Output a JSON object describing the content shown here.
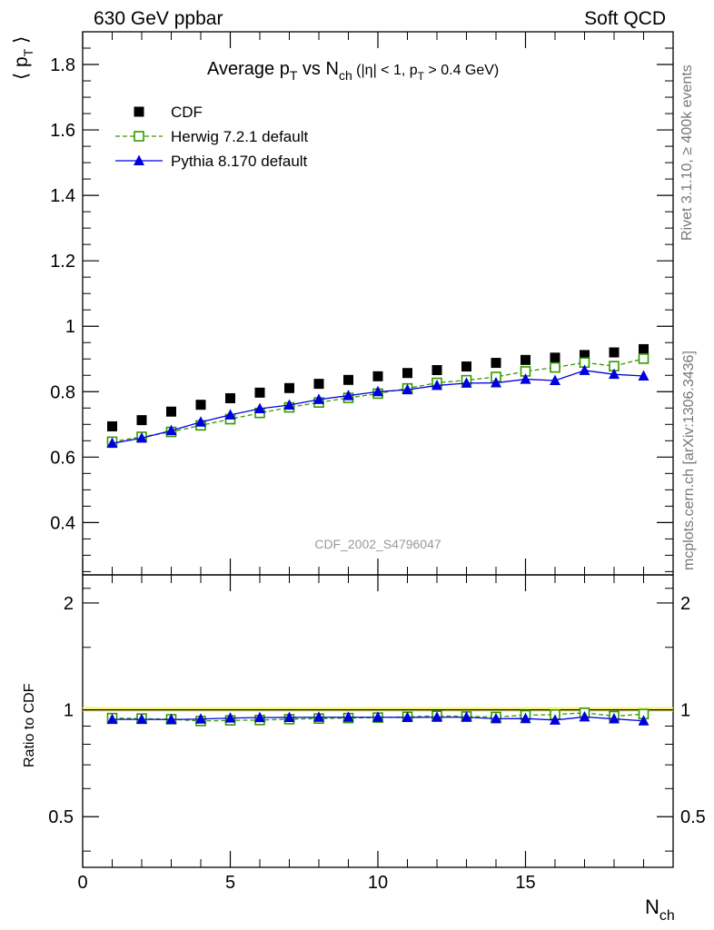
{
  "header": {
    "left_label": "630 GeV ppbar",
    "right_label": "Soft QCD"
  },
  "side_labels": {
    "rivet": "Rivet 3.1.10, ≥ 400k events",
    "mcplots": "mcplots.cern.ch [arXiv:1306.3436]"
  },
  "chart_data": [
    {
      "type": "scatter",
      "title": "Average p_T vs N_ch (|η| < 1, p_T > 0.4 GeV)",
      "ylabel": "⟨ p_T ⟩",
      "watermark": "CDF_2002_S4796047",
      "xlim": [
        0,
        20
      ],
      "ylim": [
        0.24,
        1.9
      ],
      "yticks": [
        0.4,
        0.6,
        0.8,
        1,
        1.2,
        1.4,
        1.6,
        1.8
      ],
      "ytick_labels": [
        "0.4",
        "0.6",
        "0.8",
        "1",
        "1.2",
        "1.4",
        "1.6",
        "1.8"
      ],
      "legend_position": "top-left",
      "x": [
        1,
        2,
        3,
        4,
        5,
        6,
        7,
        8,
        9,
        10,
        11,
        12,
        13,
        14,
        15,
        16,
        17,
        18,
        19
      ],
      "series": [
        {
          "name": "CDF",
          "color": "#000000",
          "marker": "filled-square",
          "values": [
            0.694,
            0.713,
            0.739,
            0.76,
            0.78,
            0.797,
            0.811,
            0.824,
            0.836,
            0.847,
            0.857,
            0.866,
            0.877,
            0.888,
            0.897,
            0.904,
            0.912,
            0.92,
            0.93
          ]
        },
        {
          "name": "Herwig 7.2.1 default",
          "color": "#339900",
          "marker": "open-square",
          "line": "dashed",
          "values": [
            0.647,
            0.662,
            0.677,
            0.697,
            0.716,
            0.735,
            0.752,
            0.767,
            0.781,
            0.794,
            0.81,
            0.827,
            0.835,
            0.845,
            0.862,
            0.874,
            0.889,
            0.878,
            0.901
          ]
        },
        {
          "name": "Pythia 8.170 default",
          "color": "#0000dd",
          "marker": "filled-triangle",
          "line": "solid",
          "values": [
            0.642,
            0.658,
            0.681,
            0.707,
            0.729,
            0.748,
            0.759,
            0.776,
            0.788,
            0.8,
            0.806,
            0.819,
            0.826,
            0.827,
            0.838,
            0.834,
            0.865,
            0.853,
            0.848
          ]
        }
      ]
    },
    {
      "type": "scatter",
      "ylabel": "Ratio to CDF",
      "xlabel": "N_ch",
      "xlim": [
        0,
        20
      ],
      "ylim": [
        0.36,
        2.4
      ],
      "y_scale": "log",
      "xticks": [
        0,
        5,
        10,
        15
      ],
      "xtick_labels": [
        "0",
        "5",
        "10",
        "15"
      ],
      "yticks": [
        0.5,
        1,
        2
      ],
      "ytick_labels": [
        "0.5",
        "1",
        "2"
      ],
      "reference_line": 1,
      "x": [
        1,
        2,
        3,
        4,
        5,
        6,
        7,
        8,
        9,
        10,
        11,
        12,
        13,
        14,
        15,
        16,
        17,
        18,
        19
      ],
      "series": [
        {
          "name": "Herwig 7.2.1 default",
          "color": "#339900",
          "marker": "open-square",
          "line": "dashed",
          "values": [
            0.948,
            0.945,
            0.941,
            0.93,
            0.934,
            0.936,
            0.941,
            0.945,
            0.948,
            0.951,
            0.956,
            0.962,
            0.958,
            0.955,
            0.966,
            0.97,
            0.981,
            0.96,
            0.973
          ]
        },
        {
          "name": "Pythia 8.170 default",
          "color": "#0000dd",
          "marker": "filled-triangle",
          "line": "solid",
          "values": [
            0.94,
            0.94,
            0.939,
            0.942,
            0.948,
            0.951,
            0.952,
            0.953,
            0.953,
            0.953,
            0.952,
            0.953,
            0.953,
            0.944,
            0.945,
            0.936,
            0.955,
            0.943,
            0.931
          ]
        }
      ]
    }
  ]
}
